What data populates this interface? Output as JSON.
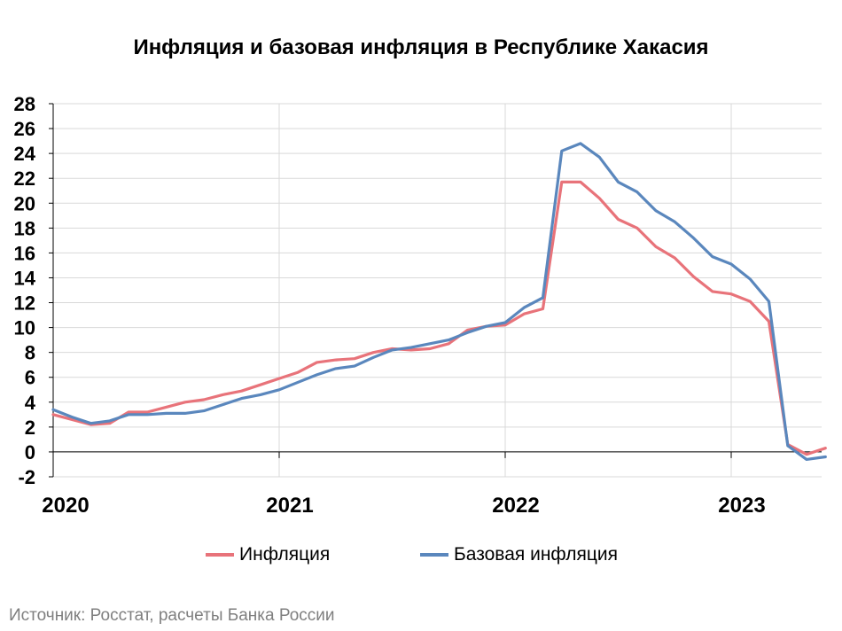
{
  "title": "Инфляция и базовая инфляция в Республике Хакасия",
  "source": "Источник: Росстат, расчеты Банка России",
  "colors": {
    "inflation": "#e8737a",
    "core": "#5a87bd",
    "grid": "#d9d9d9"
  },
  "chart_data": {
    "type": "line",
    "title": "Инфляция и базовая инфляция в Республике Хакасия",
    "xlabel": "",
    "ylabel": "",
    "ylim": [
      -2,
      28
    ],
    "yticks": [
      "28",
      "26",
      "24",
      "22",
      "20",
      "18",
      "16",
      "14",
      "12",
      "10",
      "8",
      "6",
      "4",
      "2",
      "0",
      "-2"
    ],
    "x_tick_labels": [
      "2020",
      "2021",
      "2022",
      "2023"
    ],
    "grid": true,
    "legend_position": "bottom",
    "x": [
      "2020-01",
      "2020-02",
      "2020-03",
      "2020-04",
      "2020-05",
      "2020-06",
      "2020-07",
      "2020-08",
      "2020-09",
      "2020-10",
      "2020-11",
      "2020-12",
      "2021-01",
      "2021-02",
      "2021-03",
      "2021-04",
      "2021-05",
      "2021-06",
      "2021-07",
      "2021-08",
      "2021-09",
      "2021-10",
      "2021-11",
      "2021-12",
      "2022-01",
      "2022-02",
      "2022-03",
      "2022-04",
      "2022-05",
      "2022-06",
      "2022-07",
      "2022-08",
      "2022-09",
      "2022-10",
      "2022-11",
      "2022-12",
      "2023-01",
      "2023-02",
      "2023-03",
      "2023-04",
      "2023-05",
      "2023-06"
    ],
    "series": [
      {
        "name": "Инфляция",
        "values": [
          3.0,
          2.6,
          2.2,
          2.3,
          3.2,
          3.2,
          3.6,
          4.0,
          4.2,
          4.6,
          4.9,
          5.4,
          5.9,
          6.4,
          7.2,
          7.4,
          7.5,
          8.0,
          8.3,
          8.2,
          8.3,
          8.7,
          9.8,
          10.1,
          10.2,
          11.1,
          11.5,
          21.7,
          21.7,
          20.4,
          18.7,
          18.0,
          16.5,
          15.6,
          14.1,
          12.9,
          12.7,
          12.1,
          10.5,
          0.6,
          -0.2,
          0.3
        ]
      },
      {
        "name": "Базовая инфляция",
        "values": [
          3.4,
          2.8,
          2.3,
          2.5,
          3.0,
          3.0,
          3.1,
          3.1,
          3.3,
          3.8,
          4.3,
          4.6,
          5.0,
          5.6,
          6.2,
          6.7,
          6.9,
          7.6,
          8.2,
          8.4,
          8.7,
          9.0,
          9.6,
          10.1,
          10.4,
          11.6,
          12.4,
          24.2,
          24.8,
          23.7,
          21.7,
          20.9,
          19.4,
          18.5,
          17.2,
          15.7,
          15.1,
          13.9,
          12.1,
          0.5,
          -0.6,
          -0.4
        ]
      }
    ]
  }
}
